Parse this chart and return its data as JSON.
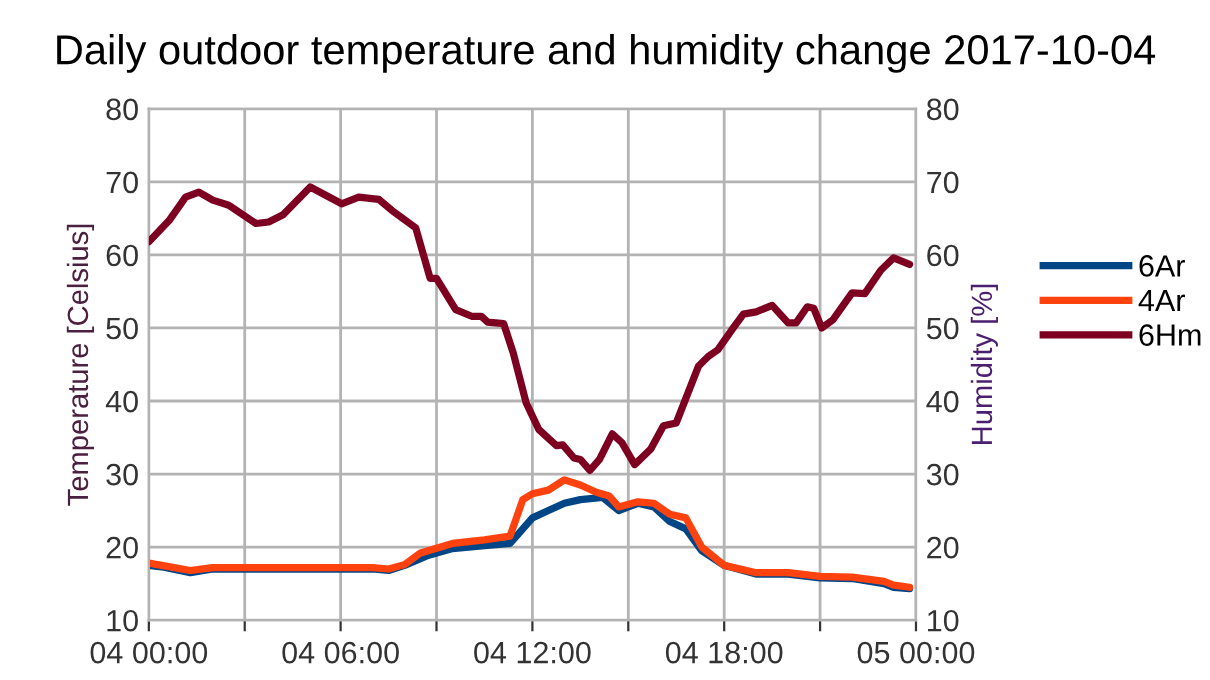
{
  "chart_data": {
    "type": "line",
    "title": "Daily outdoor temperature and humidity change 2017-10-04",
    "ylabel": "Temperature [Celsius]",
    "y2label": "Humidity [%]",
    "xlim": [
      "2017-10-04T00:00",
      "2017-10-05T00:00"
    ],
    "xticks": [
      {
        "value": "2017-10-04T00:00",
        "label": "04 00:00"
      },
      {
        "value": "2017-10-04T03:00",
        "label": null
      },
      {
        "value": "2017-10-04T06:00",
        "label": "04 06:00"
      },
      {
        "value": "2017-10-04T09:00",
        "label": null
      },
      {
        "value": "2017-10-04T12:00",
        "label": "04 12:00"
      },
      {
        "value": "2017-10-04T15:00",
        "label": null
      },
      {
        "value": "2017-10-04T18:00",
        "label": "04 18:00"
      },
      {
        "value": "2017-10-04T21:00",
        "label": null
      },
      {
        "value": "2017-10-05T00:00",
        "label": "05 00:00"
      }
    ],
    "ylim": [
      10,
      80
    ],
    "yticks": [
      10,
      20,
      30,
      40,
      50,
      60,
      70,
      80
    ],
    "y2lim": [
      10,
      80
    ],
    "y2ticks": [
      10,
      20,
      30,
      40,
      50,
      60,
      70,
      80
    ],
    "grid": true,
    "legend": "right",
    "marker": "none",
    "line_style": "solid",
    "series": [
      {
        "name": "6Ar",
        "color": "#004586",
        "x": [
          "2017-10-04T00:00",
          "2017-10-04T00:24",
          "2017-10-04T01:18",
          "2017-10-04T02:00",
          "2017-10-04T03:00",
          "2017-10-04T04:00",
          "2017-10-04T05:00",
          "2017-10-04T06:00",
          "2017-10-04T07:00",
          "2017-10-04T07:30",
          "2017-10-04T08:00",
          "2017-10-04T08:42",
          "2017-10-04T09:30",
          "2017-10-04T10:30",
          "2017-10-04T11:18",
          "2017-10-04T11:42",
          "2017-10-04T12:00",
          "2017-10-04T12:30",
          "2017-10-04T13:00",
          "2017-10-04T13:30",
          "2017-10-04T14:12",
          "2017-10-04T14:42",
          "2017-10-04T15:18",
          "2017-10-04T15:48",
          "2017-10-04T16:18",
          "2017-10-04T16:48",
          "2017-10-04T17:18",
          "2017-10-04T18:00",
          "2017-10-04T19:00",
          "2017-10-04T20:00",
          "2017-10-04T21:00",
          "2017-10-04T22:00",
          "2017-10-04T23:00",
          "2017-10-04T23:18",
          "2017-10-04T23:48"
        ],
        "values": [
          17.5,
          17.3,
          16.5,
          17,
          17,
          17,
          17,
          17,
          17,
          16.8,
          17.5,
          18.8,
          19.8,
          20.2,
          20.5,
          22.5,
          24,
          25,
          26,
          26.5,
          26.8,
          25,
          26,
          25.5,
          23.5,
          22.5,
          19.5,
          17.5,
          16.3,
          16.3,
          15.8,
          15.7,
          15,
          14.5,
          14.3
        ]
      },
      {
        "name": "4Ar",
        "color": "#ff420e",
        "x": [
          "2017-10-04T00:00",
          "2017-10-04T00:24",
          "2017-10-04T01:18",
          "2017-10-04T02:00",
          "2017-10-04T03:00",
          "2017-10-04T04:00",
          "2017-10-04T05:00",
          "2017-10-04T06:00",
          "2017-10-04T07:00",
          "2017-10-04T07:30",
          "2017-10-04T08:00",
          "2017-10-04T08:30",
          "2017-10-04T09:30",
          "2017-10-04T10:30",
          "2017-10-04T11:18",
          "2017-10-04T11:42",
          "2017-10-04T12:00",
          "2017-10-04T12:30",
          "2017-10-04T13:00",
          "2017-10-04T13:30",
          "2017-10-04T14:00",
          "2017-10-04T14:24",
          "2017-10-04T14:42",
          "2017-10-04T15:18",
          "2017-10-04T15:48",
          "2017-10-04T16:18",
          "2017-10-04T16:48",
          "2017-10-04T17:18",
          "2017-10-04T18:00",
          "2017-10-04T19:00",
          "2017-10-04T20:00",
          "2017-10-04T21:00",
          "2017-10-04T22:00",
          "2017-10-04T23:00",
          "2017-10-04T23:18",
          "2017-10-04T23:48"
        ],
        "values": [
          17.8,
          17.5,
          16.8,
          17.2,
          17.2,
          17.2,
          17.2,
          17.2,
          17.2,
          17,
          17.6,
          19.2,
          20.5,
          21,
          21.5,
          26.5,
          27.3,
          27.8,
          29.2,
          28.5,
          27.5,
          27,
          25.5,
          26.2,
          26,
          24.5,
          24,
          20,
          17.5,
          16.5,
          16.5,
          16,
          15.9,
          15.3,
          14.8,
          14.5
        ]
      },
      {
        "name": "6Hm",
        "color": "#7e0021",
        "axis": "y2",
        "x": [
          "2017-10-04T00:00",
          "2017-10-04T00:38",
          "2017-10-04T01:09",
          "2017-10-04T01:34",
          "2017-10-04T02:00",
          "2017-10-04T02:30",
          "2017-10-04T03:21",
          "2017-10-04T03:45",
          "2017-10-04T04:12",
          "2017-10-04T05:03",
          "2017-10-04T06:02",
          "2017-10-04T06:34",
          "2017-10-04T07:12",
          "2017-10-04T07:36",
          "2017-10-04T08:21",
          "2017-10-04T08:48",
          "2017-10-04T09:00",
          "2017-10-04T09:36",
          "2017-10-04T10:06",
          "2017-10-04T10:24",
          "2017-10-04T10:36",
          "2017-10-04T11:06",
          "2017-10-04T11:24",
          "2017-10-04T11:48",
          "2017-10-04T12:12",
          "2017-10-04T12:45",
          "2017-10-04T12:57",
          "2017-10-04T13:18",
          "2017-10-04T13:30",
          "2017-10-04T13:48",
          "2017-10-04T14:06",
          "2017-10-04T14:30",
          "2017-10-04T14:48",
          "2017-10-04T15:12",
          "2017-10-04T15:42",
          "2017-10-04T16:06",
          "2017-10-04T16:30",
          "2017-10-04T17:12",
          "2017-10-04T17:30",
          "2017-10-04T17:48",
          "2017-10-04T18:15",
          "2017-10-04T18:36",
          "2017-10-04T19:00",
          "2017-10-04T19:30",
          "2017-10-04T20:00",
          "2017-10-04T20:15",
          "2017-10-04T20:36",
          "2017-10-04T20:48",
          "2017-10-04T21:03",
          "2017-10-04T21:24",
          "2017-10-04T22:00",
          "2017-10-04T22:24",
          "2017-10-04T22:54",
          "2017-10-04T23:18",
          "2017-10-04T23:48"
        ],
        "values": [
          61.8,
          64.7,
          67.9,
          68.6,
          67.5,
          66.8,
          64.3,
          64.5,
          65.5,
          69.3,
          67,
          67.9,
          67.6,
          66.1,
          63.7,
          56.8,
          56.8,
          52.5,
          51.6,
          51.6,
          50.8,
          50.6,
          46.6,
          39.8,
          36.1,
          33.9,
          34,
          32.2,
          32,
          30.5,
          32,
          35.5,
          34.3,
          31.3,
          33.4,
          36.6,
          37,
          44.8,
          46.1,
          47,
          49.8,
          51.9,
          52.2,
          53.1,
          50.7,
          50.7,
          52.9,
          52.7,
          50,
          51.1,
          54.8,
          54.7,
          57.9,
          59.6,
          58.7
        ]
      }
    ]
  }
}
